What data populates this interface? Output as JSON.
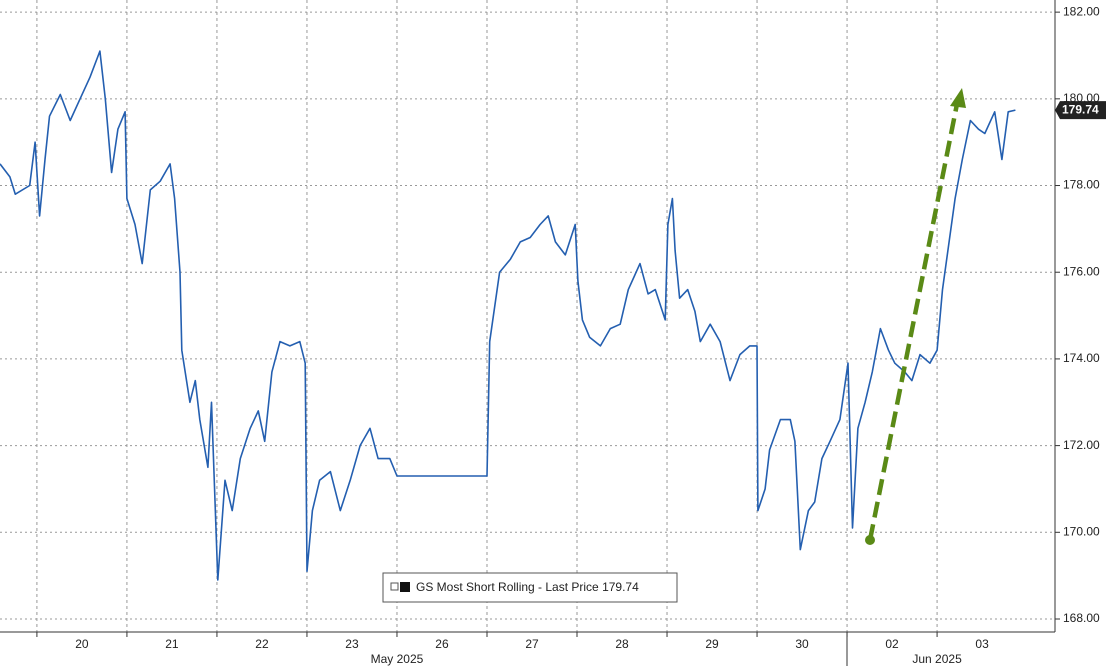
{
  "chart_data": {
    "type": "line",
    "categories": [
      "20",
      "21",
      "22",
      "23",
      "26",
      "27",
      "28",
      "29",
      "30",
      "02",
      "03"
    ],
    "month_labels": [
      "May 2025",
      "Jun 2025"
    ],
    "xlim": [
      -0.41,
      11.31
    ],
    "ylim": [
      167.7,
      182.28
    ],
    "yticks": [
      {
        "value": 168,
        "label": "168.00"
      },
      {
        "value": 170,
        "label": "170.00"
      },
      {
        "value": 172,
        "label": "172.00"
      },
      {
        "value": 174,
        "label": "174.00"
      },
      {
        "value": 176,
        "label": "176.00"
      },
      {
        "value": 178,
        "label": "178.00"
      },
      {
        "value": 180,
        "label": "180.00"
      },
      {
        "value": 182,
        "label": "182.00"
      }
    ],
    "grid": true,
    "series": [
      {
        "name": "GS Most Short Rolling - Last Price",
        "color": "#245fb0",
        "x": [
          -0.41,
          -0.3,
          -0.24,
          -0.08,
          -0.02,
          0.03,
          0.09,
          0.14,
          0.26,
          0.37,
          0.48,
          0.59,
          0.7,
          0.76,
          0.83,
          0.9,
          0.98,
          1.0,
          1.09,
          1.17,
          1.26,
          1.37,
          1.48,
          1.53,
          1.59,
          1.61,
          1.7,
          1.76,
          1.81,
          1.9,
          1.94,
          2.01,
          2.09,
          2.17,
          2.26,
          2.37,
          2.46,
          2.53,
          2.61,
          2.7,
          2.81,
          2.92,
          2.98,
          3.0,
          3.06,
          3.14,
          3.26,
          3.37,
          3.48,
          3.59,
          3.7,
          3.79,
          3.92,
          4.0,
          5.0,
          5.03,
          5.14,
          5.26,
          5.37,
          5.48,
          5.59,
          5.68,
          5.76,
          5.87,
          5.98,
          6.01,
          6.06,
          6.14,
          6.26,
          6.37,
          6.48,
          6.57,
          6.7,
          6.79,
          6.87,
          6.98,
          7.01,
          7.06,
          7.09,
          7.14,
          7.23,
          7.31,
          7.37,
          7.48,
          7.59,
          7.7,
          7.81,
          7.92,
          8.0,
          8.01,
          8.09,
          8.14,
          8.26,
          8.37,
          8.42,
          8.48,
          8.57,
          8.64,
          8.72,
          8.81,
          8.92,
          9.01,
          9.06,
          9.12,
          9.2,
          9.28,
          9.37,
          9.46,
          9.53,
          9.64,
          9.72,
          9.81,
          9.92,
          10.0,
          10.06,
          10.12,
          10.2,
          10.28,
          10.37,
          10.46,
          10.53,
          10.64,
          10.72,
          10.79,
          10.87
        ],
        "values": [
          178.5,
          178.2,
          177.8,
          178.0,
          179.0,
          177.3,
          178.6,
          179.6,
          180.1,
          179.5,
          180.0,
          180.5,
          181.1,
          180.0,
          178.3,
          179.3,
          179.7,
          177.7,
          177.1,
          176.2,
          177.9,
          178.1,
          178.5,
          177.7,
          176.0,
          174.2,
          173.0,
          173.5,
          172.6,
          171.5,
          173.0,
          168.9,
          171.2,
          170.5,
          171.7,
          172.4,
          172.8,
          172.1,
          173.7,
          174.4,
          174.3,
          174.4,
          173.9,
          169.1,
          170.5,
          171.2,
          171.4,
          170.5,
          171.2,
          172.0,
          172.4,
          171.7,
          171.7,
          171.3,
          171.3,
          174.4,
          176.0,
          176.3,
          176.7,
          176.8,
          177.1,
          177.3,
          176.7,
          176.4,
          177.1,
          175.8,
          174.9,
          174.5,
          174.3,
          174.7,
          174.8,
          175.6,
          176.2,
          175.5,
          175.6,
          174.9,
          177.1,
          177.7,
          176.5,
          175.4,
          175.6,
          175.1,
          174.4,
          174.8,
          174.4,
          173.5,
          174.1,
          174.3,
          174.3,
          170.5,
          171.0,
          171.9,
          172.6,
          172.6,
          172.1,
          169.6,
          170.5,
          170.7,
          171.7,
          172.1,
          172.6,
          173.9,
          170.1,
          172.4,
          173.0,
          173.7,
          174.7,
          174.2,
          173.9,
          173.7,
          173.5,
          174.1,
          173.9,
          174.2,
          175.6,
          176.5,
          177.7,
          178.6,
          179.5,
          179.3,
          179.2,
          179.7,
          178.6,
          179.7,
          179.74
        ]
      }
    ]
  }
}
